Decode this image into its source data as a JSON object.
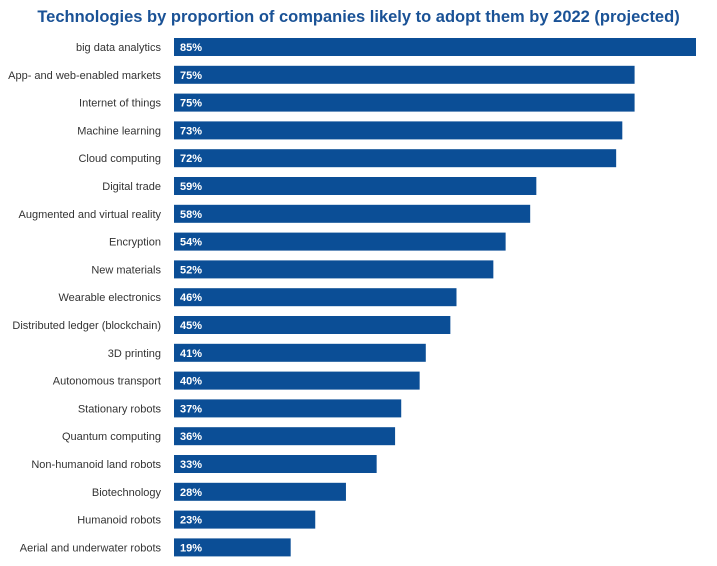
{
  "chart_data": {
    "type": "bar",
    "orientation": "horizontal",
    "title": "Technologies by proportion of companies likely to adopt them by 2022 (projected)",
    "categories": [
      "big data analytics",
      "App- and web-enabled markets",
      "Internet of things",
      "Machine learning",
      "Cloud computing",
      "Digital trade",
      "Augmented and virtual reality",
      "Encryption",
      "New materials",
      "Wearable electronics",
      "Distributed ledger (blockchain)",
      "3D printing",
      "Autonomous transport",
      "Stationary robots",
      "Quantum computing",
      "Non-humanoid land robots",
      "Biotechnology",
      "Humanoid robots",
      "Aerial and underwater robots"
    ],
    "values": [
      85,
      75,
      75,
      73,
      72,
      59,
      58,
      54,
      52,
      46,
      45,
      41,
      40,
      37,
      36,
      33,
      28,
      23,
      19
    ],
    "value_labels": [
      "85%",
      "75%",
      "75%",
      "73%",
      "72%",
      "59%",
      "58%",
      "54%",
      "52%",
      "46%",
      "45%",
      "41%",
      "40%",
      "37%",
      "36%",
      "33%",
      "28%",
      "23%",
      "19%"
    ],
    "xlim": [
      0,
      85
    ],
    "grid": false,
    "legend": "none",
    "bar_color": "#0b4e96",
    "title_color": "#1a5296"
  }
}
